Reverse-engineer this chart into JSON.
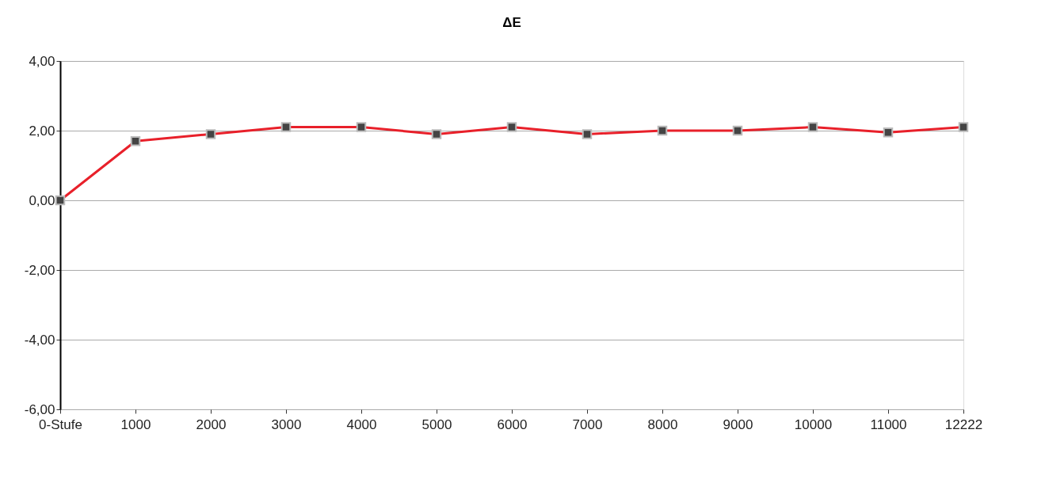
{
  "chart_data": {
    "type": "line",
    "title": "ΔE",
    "categories": [
      "0-Stufe",
      "1000",
      "2000",
      "3000",
      "4000",
      "5000",
      "6000",
      "7000",
      "8000",
      "9000",
      "10000",
      "11000",
      "12222"
    ],
    "series": [
      {
        "color": "#e8202a",
        "values": [
          0.0,
          1.7,
          1.9,
          2.1,
          2.1,
          1.9,
          2.1,
          1.9,
          2.0,
          2.0,
          2.1,
          1.95,
          2.1
        ]
      }
    ],
    "ylim": [
      -6,
      4
    ],
    "yticks": [
      {
        "value": -6,
        "label": "-6,00"
      },
      {
        "value": -4,
        "label": "-4,00"
      },
      {
        "value": -2,
        "label": "-2,00"
      },
      {
        "value": 0,
        "label": "0,00"
      },
      {
        "value": 2,
        "label": "2,00"
      },
      {
        "value": 4,
        "label": "4,00"
      }
    ],
    "grid": "y",
    "marker": "square",
    "line_style": "solid"
  }
}
